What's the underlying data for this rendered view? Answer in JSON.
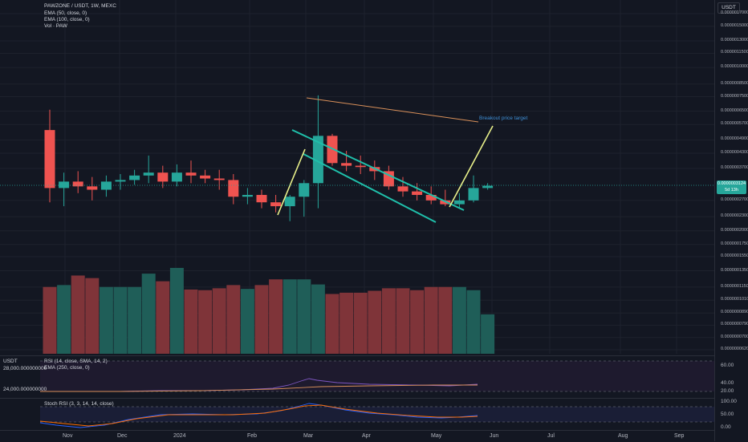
{
  "header": {
    "symbol_line": "PAWZONE / USDT, 1W, MEXC",
    "ema50": "EMA (50, close, 0)",
    "ema100": "EMA (100, close, 0)",
    "volume": "Vol · PAW"
  },
  "price_axis": {
    "currency": "USDT",
    "labels": [
      "0.0000017000",
      "0.0000015000",
      "0.0000013000",
      "0.0000011500",
      "0.0000010000",
      "0.0000008500",
      "0.0000007500",
      "0.0000006500",
      "0.0000005700",
      "0.0000004900",
      "0.0000004300",
      "0.0000003700",
      "0.0000002700",
      "0.0000002300",
      "0.0000002000",
      "0.0000001750",
      "0.0000001550",
      "0.0000001350",
      "0.0000001150",
      "0.0000001010",
      "0.0000000890",
      "0.0000000790",
      "0.0000000700",
      "0.0000000620"
    ],
    "current_price": "0.0000003124",
    "current_time": "5d 13h"
  },
  "annotation": {
    "breakout_label": "Breakout price target"
  },
  "rsi_pane": {
    "title": "RSI (14, close, SMA, 14, 2)",
    "subtitle": "EMA (250, close, 0)",
    "left_top": "USDT",
    "left_value": "24,000.000000000",
    "left_value2": "28,000.000000000",
    "labels": [
      "60.00",
      "40.00",
      "20.00"
    ]
  },
  "stoch_pane": {
    "title": "Stoch RSI (3, 3, 14, 14, close)",
    "labels": [
      "100.00",
      "50.00",
      "0.00"
    ]
  },
  "time_axis": {
    "labels": [
      "Nov",
      "Dec",
      "2024",
      "Feb",
      "Mar",
      "Apr",
      "May",
      "Jun",
      "Jul",
      "Aug",
      "Sep"
    ]
  },
  "colors": {
    "up": "#26a69a",
    "down": "#ef5350",
    "vol_up": "#1f5e58",
    "vol_down": "#7f3439",
    "channel": "#1fbfaa",
    "breakout": "#e8f08a",
    "ema_line": "#d9905a",
    "rsi_line": "#7e57c2",
    "stoch_k": "#2962ff",
    "stoch_d": "#ff6d00"
  },
  "chart_data": {
    "type": "candlestick",
    "candles": [
      {
        "o": 5.4e-07,
        "h": 6.6e-07,
        "l": 2.65e-07,
        "c": 3.05e-07,
        "v": 1050
      },
      {
        "o": 3.05e-07,
        "h": 3.55e-07,
        "l": 2.55e-07,
        "c": 3.25e-07,
        "v": 1080
      },
      {
        "o": 3.25e-07,
        "h": 3.6e-07,
        "l": 2.9e-07,
        "c": 3.1e-07,
        "v": 1230
      },
      {
        "o": 3.1e-07,
        "h": 3.4e-07,
        "l": 2.7e-07,
        "c": 3e-07,
        "v": 1190
      },
      {
        "o": 3e-07,
        "h": 3.45e-07,
        "l": 2.8e-07,
        "c": 3.25e-07,
        "v": 1050
      },
      {
        "o": 3.25e-07,
        "h": 3.5e-07,
        "l": 3e-07,
        "c": 3.3e-07,
        "v": 1050
      },
      {
        "o": 3.3e-07,
        "h": 3.65e-07,
        "l": 3.15e-07,
        "c": 3.45e-07,
        "v": 1050
      },
      {
        "o": 3.45e-07,
        "h": 4.2e-07,
        "l": 3.2e-07,
        "c": 3.55e-07,
        "v": 1260
      },
      {
        "o": 3.55e-07,
        "h": 3.8e-07,
        "l": 3.05e-07,
        "c": 3.25e-07,
        "v": 1140
      },
      {
        "o": 3.25e-07,
        "h": 3.85e-07,
        "l": 3.1e-07,
        "c": 3.55e-07,
        "v": 1350
      },
      {
        "o": 3.55e-07,
        "h": 4e-07,
        "l": 3.2e-07,
        "c": 3.45e-07,
        "v": 1010
      },
      {
        "o": 3.45e-07,
        "h": 3.65e-07,
        "l": 3.2e-07,
        "c": 3.35e-07,
        "v": 1000
      },
      {
        "o": 3.35e-07,
        "h": 3.65e-07,
        "l": 3e-07,
        "c": 3.3e-07,
        "v": 1030
      },
      {
        "o": 3.3e-07,
        "h": 3.5e-07,
        "l": 2.6e-07,
        "c": 2.8e-07,
        "v": 1080
      },
      {
        "o": 2.8e-07,
        "h": 3.05e-07,
        "l": 2.6e-07,
        "c": 2.85e-07,
        "v": 1020
      },
      {
        "o": 2.85e-07,
        "h": 3e-07,
        "l": 2.5e-07,
        "c": 2.65e-07,
        "v": 1080
      },
      {
        "o": 2.65e-07,
        "h": 2.85e-07,
        "l": 2.4e-07,
        "c": 2.55e-07,
        "v": 1170
      },
      {
        "o": 2.55e-07,
        "h": 2.85e-07,
        "l": 2.2e-07,
        "c": 2.8e-07,
        "v": 1170
      },
      {
        "o": 2.8e-07,
        "h": 3.3e-07,
        "l": 2.3e-07,
        "c": 3.2e-07,
        "v": 1170
      },
      {
        "o": 3.2e-07,
        "h": 7.6e-07,
        "l": 2.5e-07,
        "c": 5.1e-07,
        "v": 1090
      },
      {
        "o": 5.1e-07,
        "h": 5.2e-07,
        "l": 3.8e-07,
        "c": 3.9e-07,
        "v": 940
      },
      {
        "o": 3.9e-07,
        "h": 4.4e-07,
        "l": 3.6e-07,
        "c": 3.8e-07,
        "v": 960
      },
      {
        "o": 3.8e-07,
        "h": 4.2e-07,
        "l": 3.5e-07,
        "c": 3.75e-07,
        "v": 960
      },
      {
        "o": 3.75e-07,
        "h": 4e-07,
        "l": 3.3e-07,
        "c": 3.6e-07,
        "v": 990
      },
      {
        "o": 3.6e-07,
        "h": 3.8e-07,
        "l": 3e-07,
        "c": 3.1e-07,
        "v": 1030
      },
      {
        "o": 3.1e-07,
        "h": 3.4e-07,
        "l": 2.8e-07,
        "c": 2.95e-07,
        "v": 1030
      },
      {
        "o": 2.95e-07,
        "h": 3.2e-07,
        "l": 2.7e-07,
        "c": 2.85e-07,
        "v": 1000
      },
      {
        "o": 2.85e-07,
        "h": 3.1e-07,
        "l": 2.6e-07,
        "c": 2.7e-07,
        "v": 1050
      },
      {
        "o": 2.7e-07,
        "h": 3e-07,
        "l": 2.55e-07,
        "c": 2.6e-07,
        "v": 1050
      },
      {
        "o": 2.6e-07,
        "h": 2.9e-07,
        "l": 2.5e-07,
        "c": 2.7e-07,
        "v": 1050
      },
      {
        "o": 2.7e-07,
        "h": 3.45e-07,
        "l": 2.65e-07,
        "c": 3.05e-07,
        "v": 1000
      },
      {
        "o": 3.05e-07,
        "h": 3.2e-07,
        "l": 3e-07,
        "c": 3.12e-07,
        "v": 620
      }
    ]
  }
}
